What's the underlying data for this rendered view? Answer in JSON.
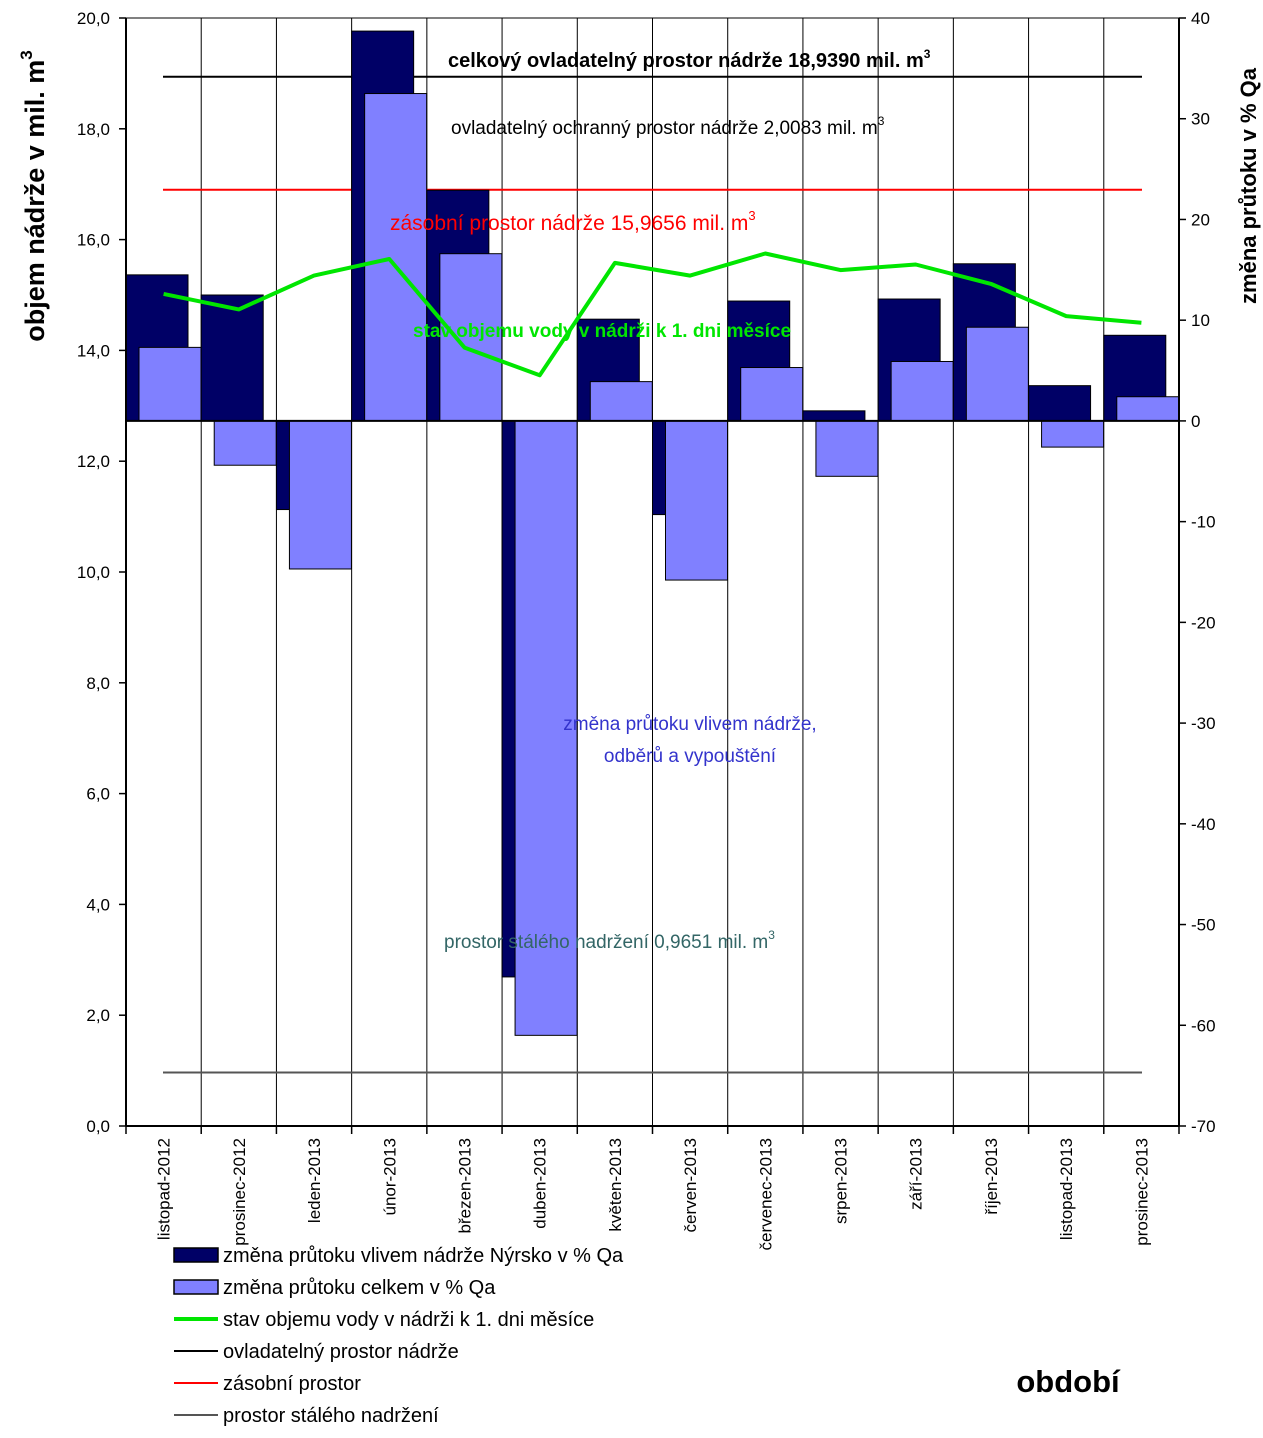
{
  "chart_data": {
    "type": "bar",
    "categories": [
      "listopad-2012",
      "prosinec-2012",
      "leden-2013",
      "únor-2013",
      "březen-2013",
      "duben-2013",
      "květen-2013",
      "červen-2013",
      "červenec-2013",
      "srpen-2013",
      "září-2013",
      "říjen-2013",
      "listopad-2013",
      "prosinec-2013"
    ],
    "series": [
      {
        "name": "změna průtoku vlivem nádrže Nýrsko v % Qa",
        "type": "bar",
        "axis": "right",
        "color": "#000066",
        "values": [
          14.5,
          12.5,
          -8.8,
          38.7,
          22.9,
          -55.2,
          10.1,
          -9.3,
          11.9,
          1.0,
          12.1,
          15.6,
          3.5,
          8.5
        ]
      },
      {
        "name": "změna průtoku celkem v % Qa",
        "type": "bar",
        "axis": "right",
        "color": "#8080FF",
        "values": [
          7.3,
          -4.4,
          -14.7,
          32.5,
          16.6,
          -61.0,
          3.9,
          -15.8,
          5.3,
          -5.5,
          5.9,
          9.3,
          -2.6,
          2.4
        ]
      },
      {
        "name": "stav objemu vody v nádrži k 1. dni měsíce",
        "type": "line",
        "axis": "left",
        "color": "#00E600",
        "values": [
          15.02,
          14.74,
          15.35,
          15.65,
          14.05,
          13.55,
          15.58,
          15.35,
          15.75,
          15.45,
          15.55,
          15.2,
          14.62,
          14.5
        ]
      }
    ],
    "hlines": [
      {
        "name": "ovladatelný prostor nádrže",
        "value": 18.939,
        "color": "#000000"
      },
      {
        "name": "zásobní prostor",
        "value": 16.9,
        "color": "#FF0000"
      },
      {
        "name": "prostor stálého nadržení",
        "value": 0.9651,
        "color": "#555555"
      }
    ],
    "ylabel": "objem nádrže v mil. m",
    "ylabel_sup": "3",
    "y2label": "změna průtoku v % Qa",
    "xlabel": "období",
    "ylim": [
      0,
      20
    ],
    "y2lim": [
      -70,
      40
    ],
    "yticks": [
      "0,0",
      "2,0",
      "4,0",
      "6,0",
      "8,0",
      "10,0",
      "12,0",
      "14,0",
      "16,0",
      "18,0",
      "20,0"
    ],
    "y2ticks": [
      "-70",
      "-60",
      "-50",
      "-40",
      "-30",
      "-20",
      "-10",
      "0",
      "10",
      "20",
      "30",
      "40"
    ],
    "annotations": {
      "total_space": "celkový ovladatelný prostor nádrže 18,9390 mil. m",
      "flood_space": "ovladatelný ochranný  prostor nádrže 2,0083 mil. m",
      "storage_space": "zásobní prostor nádrže 15,9656 mil. m",
      "volume_state": "stav objemu vody v  nádrži k 1. dni měsíce",
      "flow_change_1": "změna průtoku vlivem nádrže,",
      "flow_change_2": "odběrů a vypouštění",
      "permanent_space": "prostor stálého nadržení 0,9651 mil. m",
      "superscript": "3"
    },
    "legend_position": "bottom-left",
    "grid": "vertical"
  }
}
